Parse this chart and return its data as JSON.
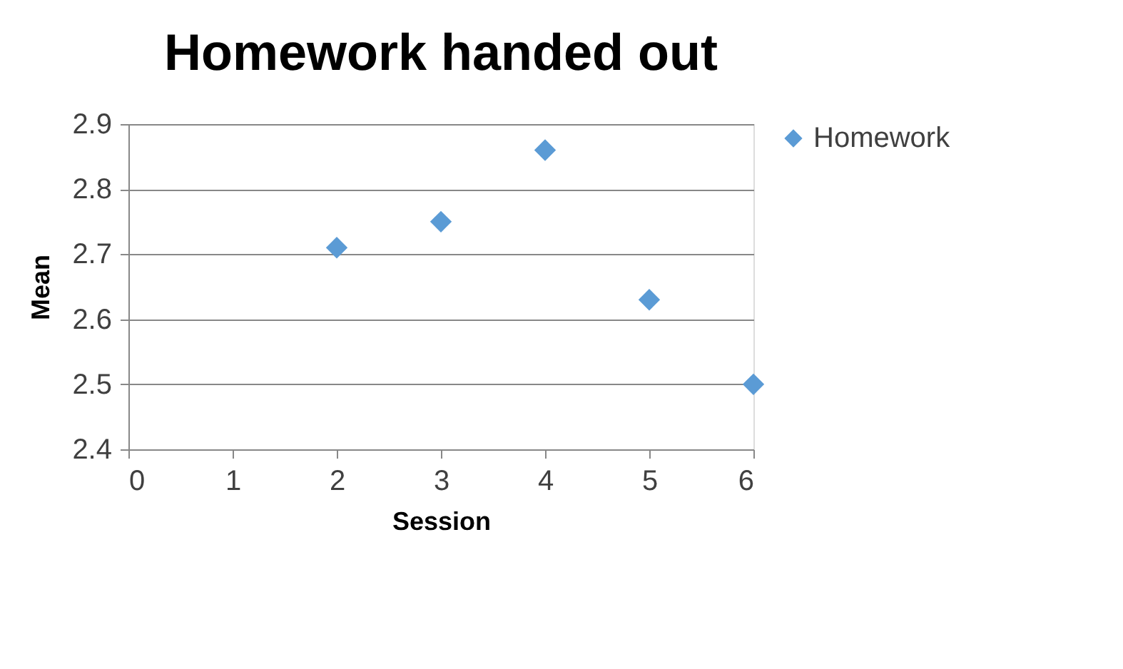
{
  "chart_data": {
    "type": "scatter",
    "title": "Homework handed out",
    "xlabel": "Session",
    "ylabel": "Mean",
    "x": [
      2,
      3,
      4,
      5,
      6
    ],
    "series": [
      {
        "name": "Homework",
        "color": "#5b9bd5",
        "values": [
          2.71,
          2.75,
          2.86,
          2.63,
          2.5
        ]
      }
    ],
    "xlim": [
      0,
      6
    ],
    "xticks": [
      0,
      1,
      2,
      3,
      4,
      5,
      6
    ],
    "ylim": [
      2.4,
      2.9
    ],
    "yticks": [
      2.4,
      2.5,
      2.6,
      2.7,
      2.8,
      2.9
    ],
    "grid": "y",
    "legend": "right",
    "marker": "diamond"
  }
}
